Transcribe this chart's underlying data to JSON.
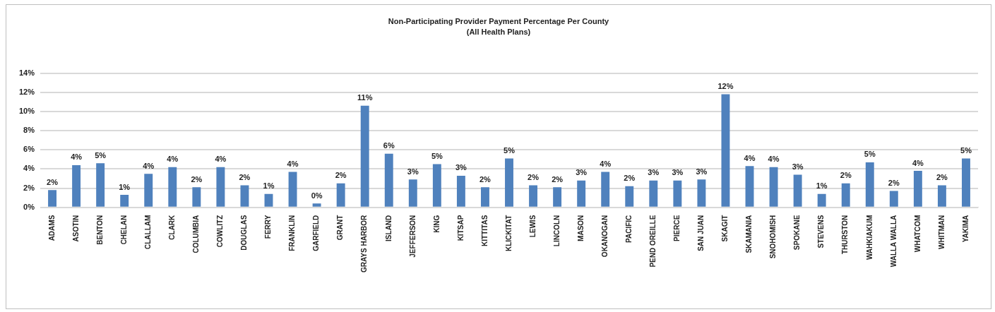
{
  "chart_data": {
    "type": "bar",
    "title": "Non-Participating  Provider Payment Percentage Per County",
    "subtitle": "(All Health Plans)",
    "categories": [
      "ADAMS",
      "ASOTIN",
      "BENTON",
      "CHELAN",
      "CLALLAM",
      "CLARK",
      "COLUMBIA",
      "COWLITZ",
      "DOUGLAS",
      "FERRY",
      "FRANKLIN",
      "GARFIELD",
      "GRANT",
      "GRAYS HARBOR",
      "ISLAND",
      "JEFFERSON",
      "KING",
      "KITSAP",
      "KITTITAS",
      "KLICKITAT",
      "LEWIS",
      "LINCOLN",
      "MASON",
      "OKANOGAN",
      "PACIFIC",
      "PEND OREILLE",
      "PIERCE",
      "SAN JUAN",
      "SKAGIT",
      "SKAMANIA",
      "SNOHOMISH",
      "SPOKANE",
      "STEVENS",
      "THURSTON",
      "WAHKIAKUM",
      "WALLA WALLA",
      "WHATCOM",
      "WHITMAN",
      "YAKIMA"
    ],
    "values": [
      1.8,
      4.4,
      4.6,
      1.3,
      3.5,
      4.2,
      2.1,
      4.2,
      2.3,
      1.4,
      3.7,
      0.4,
      2.5,
      10.6,
      5.6,
      2.9,
      4.5,
      3.3,
      2.1,
      5.1,
      2.3,
      2.1,
      2.8,
      3.7,
      2.2,
      2.8,
      2.8,
      2.9,
      11.8,
      4.3,
      4.2,
      3.4,
      1.4,
      2.5,
      4.7,
      1.7,
      3.8,
      2.3,
      5.1
    ],
    "value_labels": [
      "2%",
      "4%",
      "5%",
      "1%",
      "4%",
      "4%",
      "2%",
      "4%",
      "2%",
      "1%",
      "4%",
      "0%",
      "2%",
      "11%",
      "6%",
      "3%",
      "5%",
      "3%",
      "2%",
      "5%",
      "2%",
      "2%",
      "3%",
      "4%",
      "2%",
      "3%",
      "3%",
      "3%",
      "12%",
      "4%",
      "4%",
      "3%",
      "1%",
      "2%",
      "5%",
      "2%",
      "4%",
      "2%",
      "5%"
    ],
    "color": "#4f81bd",
    "ylim": [
      0,
      14
    ],
    "yticks": [
      {
        "value": 0,
        "label": "0%"
      },
      {
        "value": 2,
        "label": "2%"
      },
      {
        "value": 4,
        "label": "4%"
      },
      {
        "value": 6,
        "label": "6%"
      },
      {
        "value": 8,
        "label": "8%"
      },
      {
        "value": 10,
        "label": "10%"
      },
      {
        "value": 12,
        "label": "12%"
      },
      {
        "value": 14,
        "label": "14%"
      }
    ],
    "grid": "y",
    "legend": false
  }
}
